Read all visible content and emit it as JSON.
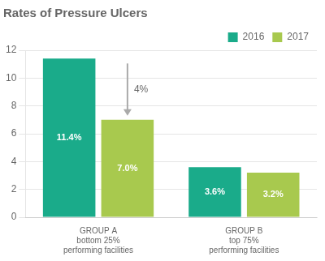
{
  "chart_data": {
    "type": "bar",
    "title": "Rates of Pressure Ulcers",
    "categories": [
      "GROUP A",
      "GROUP B"
    ],
    "category_subtitles": [
      "bottom 25%\nperforming facilities",
      "top 75%\nperforming facilities"
    ],
    "series": [
      {
        "name": "2016",
        "color": "#1aab8a",
        "values": [
          11.4,
          3.6
        ],
        "value_labels": [
          "11.4%",
          "3.6%"
        ]
      },
      {
        "name": "2017",
        "color": "#a8c94e",
        "values": [
          7.0,
          3.2
        ],
        "value_labels": [
          "7.0%",
          "3.2%"
        ]
      }
    ],
    "data_labels": true,
    "annotations": [
      {
        "text": "4%",
        "category": "GROUP A",
        "from": "2016",
        "to": "2017",
        "color": "#aaaaaa"
      }
    ],
    "ylim": [
      0,
      12
    ],
    "yticks": [
      0,
      2,
      4,
      6,
      8,
      10,
      12
    ],
    "grid": true,
    "legend": "top right"
  }
}
